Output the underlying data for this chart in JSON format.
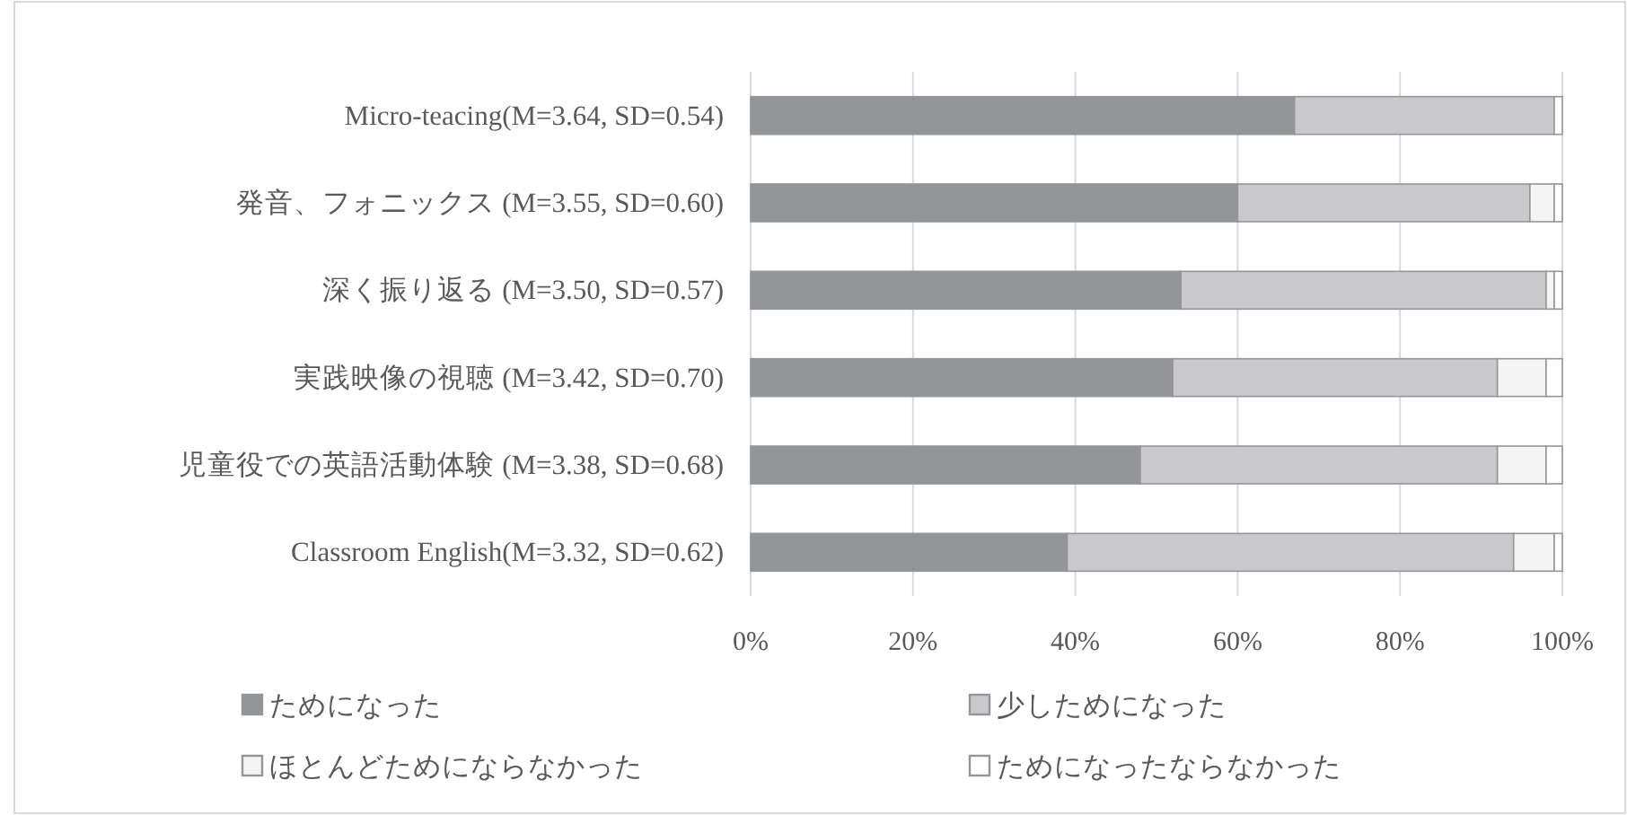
{
  "chart_data": {
    "type": "bar",
    "orientation": "horizontal",
    "stacked": true,
    "categories": [
      "Micro-teacing(M=3.64, SD=0.54)",
      "発音、フォニックス (M=3.55, SD=0.60)",
      "深く振り返る (M=3.50, SD=0.57)",
      "実践映像の視聴 (M=3.42, SD=0.70)",
      "児童役での英語活動体験 (M=3.38, SD=0.68)",
      "Classroom English(M=3.32, SD=0.62)"
    ],
    "series": [
      {
        "name": "ためになった",
        "color": "#939598",
        "values": [
          67,
          60,
          53,
          52,
          48,
          39
        ]
      },
      {
        "name": "少しためになった",
        "color": "#c9c9cb",
        "values": [
          32,
          36,
          45,
          40,
          44,
          55
        ]
      },
      {
        "name": "ほとんどためにならなかった",
        "color": "#f4f4f4",
        "values": [
          0,
          3,
          1,
          6,
          6,
          5
        ]
      },
      {
        "name": "ためになったならなかった",
        "color": "#ffffff",
        "values": [
          1,
          1,
          1,
          2,
          2,
          1
        ]
      }
    ],
    "xlim": [
      0,
      100
    ],
    "xticks": [
      {
        "value": 0,
        "label": "0%"
      },
      {
        "value": 20,
        "label": "20%"
      },
      {
        "value": 40,
        "label": "40%"
      },
      {
        "value": 60,
        "label": "60%"
      },
      {
        "value": 80,
        "label": "80%"
      },
      {
        "value": 100,
        "label": "100%"
      }
    ],
    "grid": "x",
    "legend": "bottom"
  }
}
